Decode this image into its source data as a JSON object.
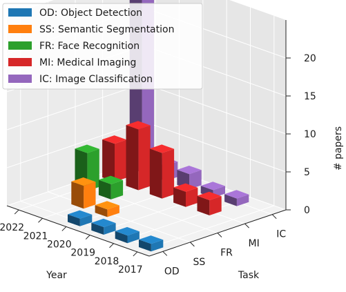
{
  "chart_data": {
    "type": "bar3d",
    "title": "",
    "xlabel": "Year",
    "ylabel": "Task",
    "zlabel": "# papers",
    "years": [
      "2017",
      "2018",
      "2019",
      "2020",
      "2021",
      "2022"
    ],
    "task_ticks": [
      "OD",
      "SS",
      "FR",
      "MI",
      "IC"
    ],
    "zticks": [
      "0",
      "5",
      "10",
      "15",
      "20"
    ],
    "zlim": [
      0,
      23
    ],
    "legend_position": "top-left",
    "grid": true,
    "series": [
      {
        "code": "OD",
        "name": "OD: Object Detection",
        "color": "#1f77b4",
        "values": [
          1,
          1,
          1,
          1,
          0,
          0
        ]
      },
      {
        "code": "SS",
        "name": "SS: Semantic Segmentation",
        "color": "#ff7f0e",
        "values": [
          0,
          0,
          0,
          1,
          3,
          0
        ]
      },
      {
        "code": "FR",
        "name": "FR: Face Recognition",
        "color": "#2ca02c",
        "values": [
          0,
          0,
          0,
          0,
          2,
          5
        ]
      },
      {
        "code": "MI",
        "name": "MI: Medical Imaging",
        "color": "#d62728",
        "values": [
          0,
          2,
          2,
          6,
          8,
          5
        ]
      },
      {
        "code": "IC",
        "name": "IC: Image Classification",
        "color": "#9467bd",
        "values": [
          0,
          1,
          1,
          2,
          2,
          23
        ]
      }
    ]
  }
}
